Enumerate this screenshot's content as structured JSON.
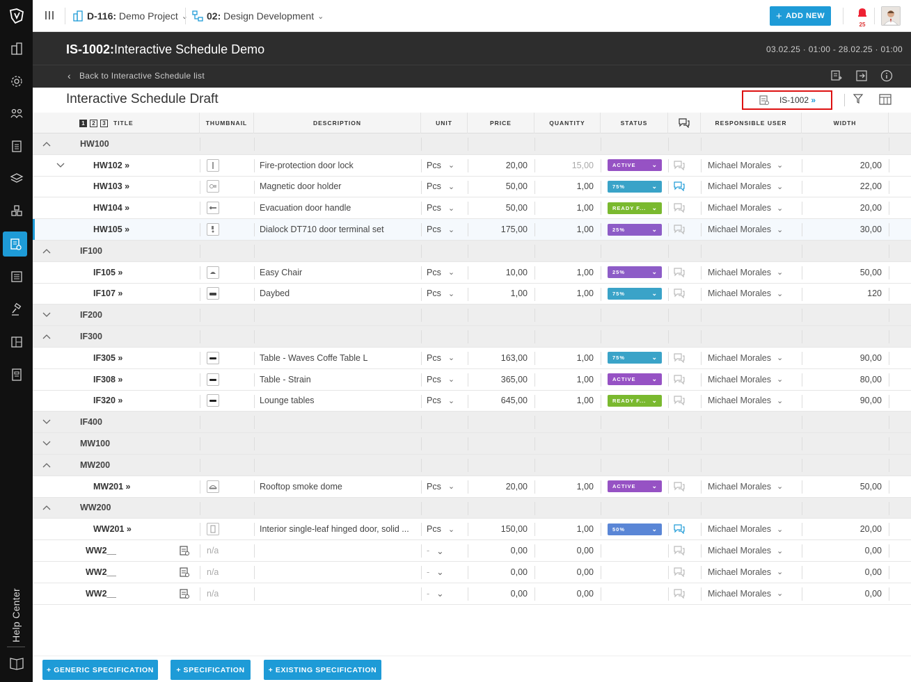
{
  "topbar": {
    "project_code": "D-116:",
    "project_name": "Demo Project",
    "phase_code": "02:",
    "phase_name": "Design Development",
    "add_new_label": "ADD NEW",
    "notification_count": "25"
  },
  "header": {
    "code": "IS-1002:",
    "name": "Interactive Schedule Demo",
    "date_range": "03.02.25 · 01:00 - 28.02.25 · 01:00",
    "back_label": "Back to Interactive Schedule list"
  },
  "draft": {
    "title": "Interactive Schedule Draft",
    "schedule_badge": "IS-1002",
    "schedule_badge_arrow": "»"
  },
  "table": {
    "levels": [
      "1",
      "2",
      "3"
    ],
    "columns": {
      "title": "TITLE",
      "thumbnail": "THUMBNAIL",
      "description": "DESCRIPTION",
      "unit": "UNIT",
      "price": "PRICE",
      "quantity": "QUANTITY",
      "status": "STATUS",
      "responsible": "RESPONSIBLE USER",
      "width": "WIDTH"
    },
    "rows": [
      {
        "type": "group",
        "title": "HW100",
        "expanded": true
      },
      {
        "type": "item",
        "title": "HW102 »",
        "expander": true,
        "thumb": "door-lock",
        "description": "Fire-protection door lock",
        "unit": "Pcs",
        "price": "20,00",
        "quantity": "15,00",
        "qty_muted": true,
        "status": "ACTIVE",
        "status_kind": "active",
        "comment_active": false,
        "user": "Michael Morales",
        "width": "20,00"
      },
      {
        "type": "item",
        "title": "HW103 »",
        "thumb": "door-holder",
        "description": "Magnetic door holder",
        "unit": "Pcs",
        "price": "50,00",
        "quantity": "1,00",
        "status": "75%",
        "status_kind": "75",
        "comment_active": true,
        "user": "Michael Morales",
        "width": "22,00"
      },
      {
        "type": "item",
        "title": "HW104 »",
        "thumb": "door-handle",
        "description": "Evacuation door handle",
        "unit": "Pcs",
        "price": "50,00",
        "quantity": "1,00",
        "status": "READY F...",
        "status_kind": "ready",
        "comment_active": false,
        "user": "Michael Morales",
        "width": "20,00"
      },
      {
        "type": "item",
        "title": "HW105 »",
        "selected": true,
        "thumb": "terminal",
        "description": "Dialock DT710 door terminal set",
        "unit": "Pcs",
        "price": "175,00",
        "quantity": "1,00",
        "status": "25%",
        "status_kind": "25",
        "comment_active": false,
        "user": "Michael Morales",
        "width": "30,00"
      },
      {
        "type": "group",
        "title": "IF100",
        "expanded": true
      },
      {
        "type": "item",
        "title": "IF105 »",
        "thumb": "chair",
        "description": "Easy Chair",
        "unit": "Pcs",
        "price": "10,00",
        "quantity": "1,00",
        "status": "25%",
        "status_kind": "25",
        "comment_active": false,
        "user": "Michael Morales",
        "width": "50,00"
      },
      {
        "type": "item",
        "title": "IF107 »",
        "thumb": "daybed",
        "description": "Daybed",
        "unit": "Pcs",
        "price": "1,00",
        "quantity": "1,00",
        "status": "75%",
        "status_kind": "75",
        "comment_active": false,
        "user": "Michael Morales",
        "width": "120"
      },
      {
        "type": "group",
        "title": "IF200",
        "expanded": false
      },
      {
        "type": "group",
        "title": "IF300",
        "expanded": true
      },
      {
        "type": "item",
        "title": "IF305 »",
        "thumb": "table",
        "description": "Table - Waves Coffe Table L",
        "unit": "Pcs",
        "price": "163,00",
        "quantity": "1,00",
        "status": "75%",
        "status_kind": "75",
        "comment_active": false,
        "user": "Michael Morales",
        "width": "90,00"
      },
      {
        "type": "item",
        "title": "IF308 »",
        "thumb": "table",
        "description": "Table - Strain",
        "unit": "Pcs",
        "price": "365,00",
        "quantity": "1,00",
        "status": "ACTIVE",
        "status_kind": "active",
        "comment_active": false,
        "user": "Michael Morales",
        "width": "80,00"
      },
      {
        "type": "item",
        "title": "IF320 »",
        "thumb": "table",
        "description": "Lounge tables",
        "unit": "Pcs",
        "price": "645,00",
        "quantity": "1,00",
        "status": "READY F...",
        "status_kind": "ready",
        "comment_active": false,
        "user": "Michael Morales",
        "width": "90,00"
      },
      {
        "type": "group",
        "title": "IF400",
        "expanded": false
      },
      {
        "type": "group",
        "title": "MW100",
        "expanded": false
      },
      {
        "type": "group",
        "title": "MW200",
        "expanded": true
      },
      {
        "type": "item",
        "title": "MW201 »",
        "thumb": "smoke-dome",
        "description": "Rooftop smoke dome",
        "unit": "Pcs",
        "price": "20,00",
        "quantity": "1,00",
        "status": "ACTIVE",
        "status_kind": "active",
        "comment_active": false,
        "user": "Michael Morales",
        "width": "50,00"
      },
      {
        "type": "group",
        "title": "WW200",
        "expanded": true
      },
      {
        "type": "item",
        "title": "WW201 »",
        "thumb": "door",
        "description": "Interior single-leaf hinged door, solid ...",
        "unit": "Pcs",
        "price": "150,00",
        "quantity": "1,00",
        "status": "50%",
        "status_kind": "50",
        "comment_active": true,
        "user": "Michael Morales",
        "width": "20,00"
      },
      {
        "type": "draft",
        "title": "WW2__",
        "thumb_text": "n/a",
        "unit": "-",
        "price": "0,00",
        "quantity": "0,00",
        "user": "Michael Morales",
        "width": "0,00"
      },
      {
        "type": "draft",
        "title": "WW2__",
        "thumb_text": "n/a",
        "unit": "-",
        "price": "0,00",
        "quantity": "0,00",
        "user": "Michael Morales",
        "width": "0,00"
      },
      {
        "type": "draft",
        "title": "WW2__",
        "thumb_text": "n/a",
        "unit": "-",
        "price": "0,00",
        "quantity": "0,00",
        "user": "Michael Morales",
        "width": "0,00"
      }
    ]
  },
  "footer": {
    "generic_spec": "+ GENERIC SPECIFICATION",
    "spec": "+ SPECIFICATION",
    "existing_spec": "+ EXISTING SPECIFICATION"
  },
  "sidebar": {
    "help_label": "Help Center"
  },
  "colors": {
    "accent": "#1e9bd7",
    "active": "#9652c4",
    "pct75": "#3aa3c8",
    "pct25": "#8d5cc7",
    "ready": "#7ab92f",
    "pct50": "#5a86d6",
    "highlight": "#dd1111"
  }
}
